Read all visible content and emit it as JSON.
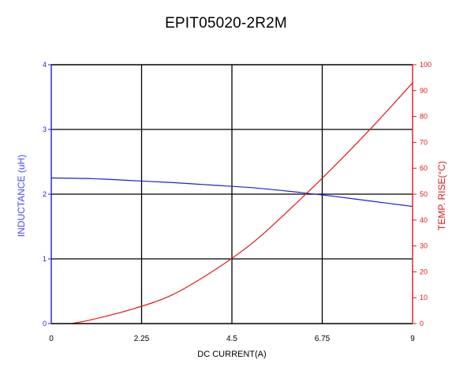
{
  "chart_data": {
    "type": "line",
    "title": "EPIT05020-2R2M",
    "xlabel": "DC CURRENT(A)",
    "ylabel": "INDUCTANCE (uH)",
    "y2label": "TEMP. RISE(°C)",
    "xlim": [
      0,
      9
    ],
    "ylim": [
      0,
      4
    ],
    "y2lim": [
      0,
      100
    ],
    "x_ticks": [
      "0",
      "2.25",
      "4.5",
      "6.75",
      "9"
    ],
    "y_ticks": [
      "0",
      "1",
      "2",
      "3",
      "4"
    ],
    "y2_ticks": [
      "0",
      "10",
      "20",
      "30",
      "40",
      "50",
      "60",
      "70",
      "80",
      "90",
      "100"
    ],
    "grid": true,
    "series": [
      {
        "axis": "left",
        "color": "#1f1fd6",
        "x": [
          0,
          1,
          2,
          3,
          4,
          5,
          6,
          7,
          8,
          9
        ],
        "y": [
          2.25,
          2.24,
          2.21,
          2.18,
          2.14,
          2.1,
          2.04,
          1.97,
          1.89,
          1.81
        ]
      },
      {
        "axis": "right",
        "color": "#e01818",
        "x": [
          0.5,
          1,
          2,
          3,
          4,
          5,
          6,
          7,
          8,
          9
        ],
        "y": [
          0,
          1.5,
          5.5,
          11,
          20,
          31,
          45,
          60,
          76,
          93
        ]
      }
    ]
  }
}
